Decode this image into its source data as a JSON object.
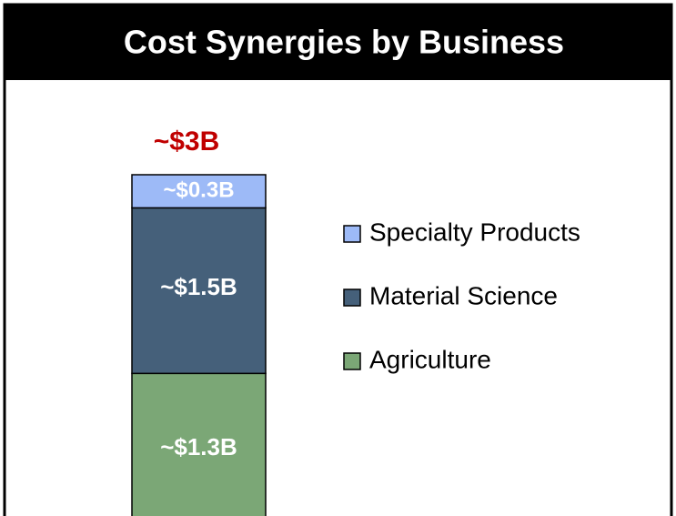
{
  "chart_data": {
    "type": "stacked-bar",
    "title": "Cost Synergies by Business",
    "total_label": "~$3B",
    "series": [
      {
        "name": "Agriculture",
        "color": "#7ba776",
        "values": [
          1.3
        ],
        "value_labels": [
          "~$1.3B"
        ]
      },
      {
        "name": "Material Science",
        "color": "#45607a",
        "values": [
          1.5
        ],
        "value_labels": [
          "~$1.5B"
        ]
      },
      {
        "name": "Specialty Products",
        "color": "#9dbaf7",
        "values": [
          0.3
        ],
        "value_labels": [
          "~$0.3B"
        ]
      }
    ],
    "legend": "right"
  }
}
